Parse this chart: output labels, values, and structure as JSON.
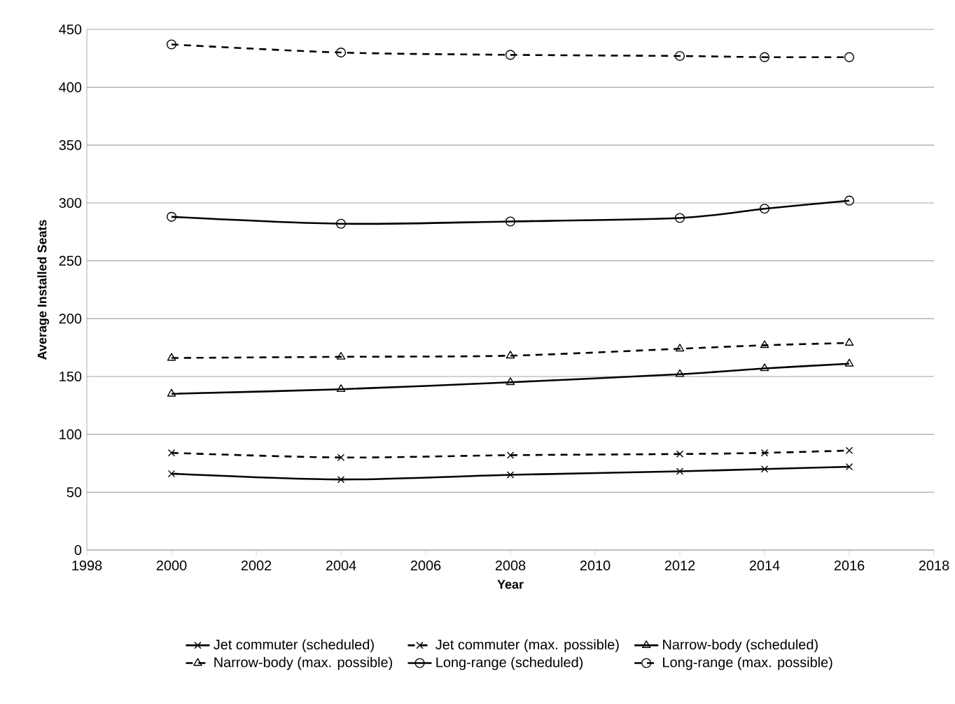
{
  "chart_data": {
    "type": "line",
    "xlabel": "Year",
    "ylabel": "Average Installed Seats",
    "x": [
      2000,
      2004,
      2008,
      2012,
      2014,
      2016
    ],
    "series": [
      {
        "name": "Jet commuter (scheduled)",
        "color": "#000000",
        "marker": "cross",
        "line_style": "solid",
        "values": [
          66,
          61,
          65,
          68,
          70,
          72
        ]
      },
      {
        "name": "Jet commuter (max. possible)",
        "color": "#000000",
        "marker": "cross",
        "line_style": "dashed",
        "values": [
          84,
          80,
          82,
          83,
          84,
          86
        ]
      },
      {
        "name": "Narrow-body (scheduled)",
        "color": "#000000",
        "marker": "triangle",
        "line_style": "solid",
        "values": [
          135,
          139,
          145,
          152,
          157,
          161
        ]
      },
      {
        "name": "Narrow-body (max. possible)",
        "color": "#000000",
        "marker": "triangle",
        "line_style": "dashed",
        "values": [
          166,
          167,
          168,
          174,
          177,
          179
        ]
      },
      {
        "name": "Long-range (scheduled)",
        "color": "#000000",
        "marker": "circle",
        "line_style": "solid",
        "values": [
          288,
          282,
          284,
          287,
          295,
          302
        ]
      },
      {
        "name": "Long-range (max. possible)",
        "color": "#000000",
        "marker": "circle",
        "line_style": "dashed",
        "values": [
          437,
          430,
          428,
          427,
          426,
          426
        ]
      }
    ],
    "xlim": [
      1998,
      2018
    ],
    "xticks": [
      1998,
      2000,
      2002,
      2004,
      2006,
      2008,
      2010,
      2012,
      2014,
      2016,
      2018
    ],
    "ylim": [
      0,
      450
    ],
    "yticks": [
      0,
      50,
      100,
      150,
      200,
      250,
      300,
      350,
      400,
      450
    ],
    "grid": "y",
    "legend": "bottom"
  }
}
